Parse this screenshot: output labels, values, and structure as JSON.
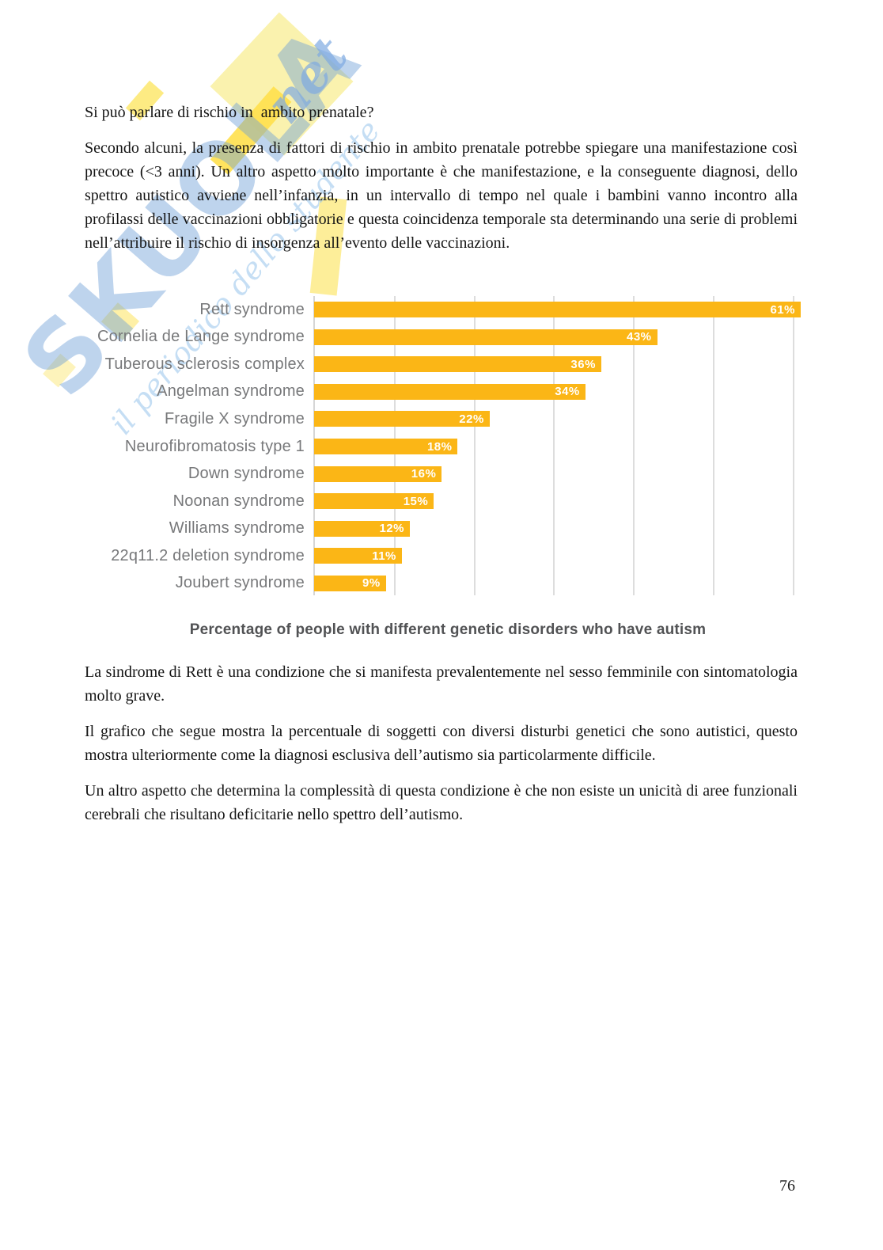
{
  "page": {
    "heading": "Si può parlare di rischio in  ambito prenatale?",
    "paragraphs": [
      "Secondo alcuni, la presenza di fattori di rischio in ambito prenatale potrebbe spiegare una manifestazione così precoce (<3 anni). Un altro aspetto molto importante è che manifestazione, e la conseguente diagnosi, dello spettro autistico avviene nell’infanzia, in un intervallo di tempo nel quale i bambini vanno incontro alla profilassi delle vaccinazioni obbligatorie e questa coincidenza temporale sta determinando una serie di problemi nell’attribuire il rischio di insorgenza all’evento delle vaccinazioni.",
      "La sindrome di Rett è una condizione che si manifesta prevalentemente nel sesso femminile con sintomatologia molto grave.",
      "Il grafico che segue mostra la percentuale di soggetti con diversi disturbi genetici che sono autistici, questo mostra ulteriormente come la diagnosi esclusiva dell’autismo sia particolarmente difficile.",
      "Un altro aspetto che determina la complessità di questa condizione è che non esiste un unicità di aree funzionali cerebrali che risultano deficitarie nello spettro dell’autismo."
    ],
    "page_number": "76"
  },
  "watermark": {
    "brand": "SKUOLA",
    "brand_suffix": "net",
    "tagline": "il periodico dello studente",
    "brand_color": "#6ea0d7",
    "flag_color": "#faf1aa",
    "band_color": "#ffe04d"
  },
  "chart_data": {
    "type": "bar",
    "orientation": "horizontal",
    "title": "Percentage of people with different genetic disorders who have autism",
    "categories": [
      "Rett syndrome",
      "Cornelia de Lange syndrome",
      "Tuberous sclerosis complex",
      "Angelman syndrome",
      "Fragile X syndrome",
      "Neurofibromatosis type 1",
      "Down syndrome",
      "Noonan syndrome",
      "Williams syndrome",
      "22q11.2 deletion syndrome",
      "Joubert syndrome"
    ],
    "values": [
      61,
      43,
      36,
      34,
      22,
      18,
      16,
      15,
      12,
      11,
      9
    ],
    "value_suffix": "%",
    "xlim": [
      0,
      61
    ],
    "gridlines": [
      10,
      20,
      30,
      40,
      50,
      60
    ],
    "grid_on": true,
    "legend": "none",
    "bar_color": "#fbb616",
    "category_label_color": "#77787a",
    "value_label_color": "#ffffff",
    "grid_color": "#dddddd"
  }
}
